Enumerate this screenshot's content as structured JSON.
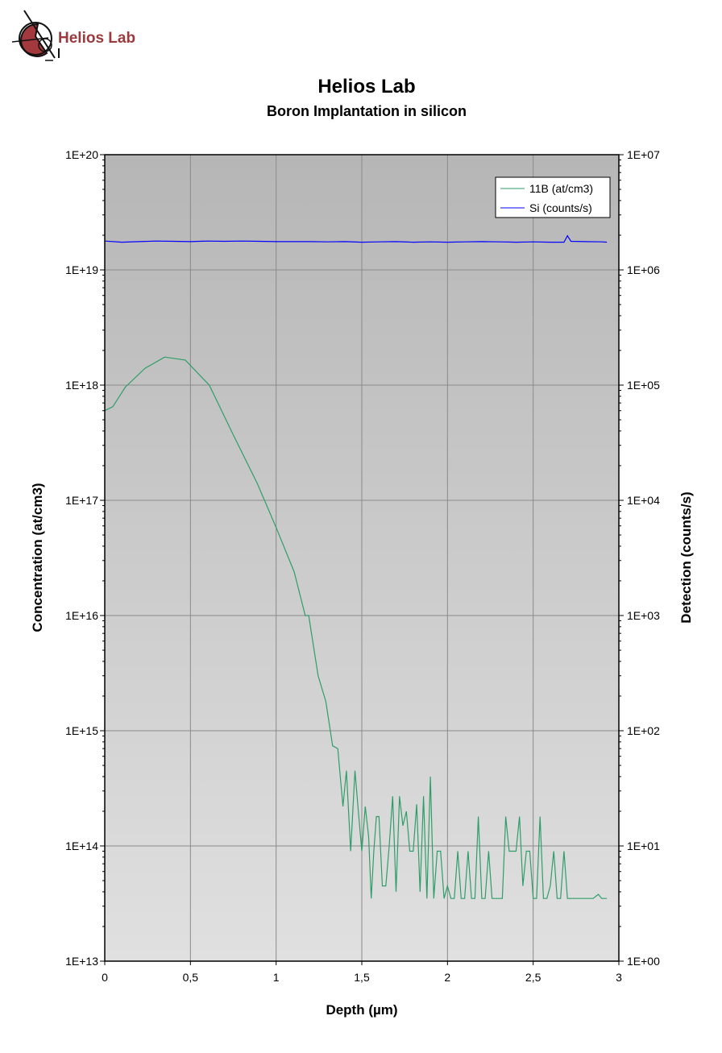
{
  "logo": {
    "text": "Helios Lab",
    "color": "#9b3a3e"
  },
  "chart_data": {
    "type": "line",
    "title": "Helios Lab",
    "subtitle": "Boron Implantation in silicon",
    "xlabel": "Depth (µm)",
    "ylabel": "Concentration (at/cm3)",
    "y2label": "Detection (counts/s)",
    "xlim": [
      0,
      3
    ],
    "ylim": [
      10000000000000.0,
      1e+20
    ],
    "y2lim": [
      1,
      10000000.0
    ],
    "yscale": "log",
    "y2scale": "log",
    "grid": true,
    "legend_position": "top-right",
    "xticks": [
      "0",
      "0,5",
      "1",
      "1,5",
      "2",
      "2,5",
      "3"
    ],
    "yticks": [
      "1E+13",
      "1E+14",
      "1E+15",
      "1E+16",
      "1E+17",
      "1E+18",
      "1E+19",
      "1E+20"
    ],
    "y2ticks": [
      "1E+00",
      "1E+01",
      "1E+02",
      "1E+03",
      "1E+04",
      "1E+05",
      "1E+06",
      "1E+07"
    ],
    "series": [
      {
        "name": "11B (at/cm3)",
        "axis": "left",
        "color": "#2e9e68",
        "x": [
          0,
          0.047,
          0.12,
          0.235,
          0.35,
          0.47,
          0.61,
          0.75,
          0.89,
          1.0,
          1.105,
          1.17,
          1.19,
          1.245,
          1.29,
          1.33,
          1.36,
          1.39,
          1.41,
          1.435,
          1.46,
          1.48,
          1.5,
          1.52,
          1.54,
          1.555,
          1.57,
          1.585,
          1.6,
          1.62,
          1.64,
          1.66,
          1.68,
          1.7,
          1.72,
          1.74,
          1.76,
          1.78,
          1.8,
          1.82,
          1.84,
          1.86,
          1.88,
          1.9,
          1.92,
          1.94,
          1.96,
          1.98,
          2.0,
          2.02,
          2.04,
          2.06,
          2.08,
          2.1,
          2.12,
          2.14,
          2.16,
          2.18,
          2.2,
          2.22,
          2.24,
          2.26,
          2.28,
          2.3,
          2.32,
          2.34,
          2.36,
          2.38,
          2.4,
          2.42,
          2.44,
          2.46,
          2.48,
          2.5,
          2.52,
          2.54,
          2.56,
          2.58,
          2.6,
          2.62,
          2.64,
          2.66,
          2.68,
          2.7,
          2.75,
          2.8,
          2.85,
          2.88,
          2.9,
          2.93
        ],
        "y": [
          6e+17,
          6.5e+17,
          9.6e+17,
          1.4e+18,
          1.75e+18,
          1.65e+18,
          1e+18,
          3.7e+17,
          1.4e+17,
          5.8e+16,
          2.4e+16,
          1e+16,
          1e+16,
          3000000000000000.0,
          1800000000000000.0,
          740000000000000.0,
          700000000000000.0,
          220000000000000.0,
          450000000000000.0,
          90000000000000.0,
          450000000000000.0,
          200000000000000.0,
          90000000000000.0,
          220000000000000.0,
          120000000000000.0,
          35000000000000.0,
          90000000000000.0,
          180000000000000.0,
          180000000000000.0,
          45000000000000.0,
          45000000000000.0,
          100000000000000.0,
          270000000000000.0,
          40000000000000.0,
          270000000000000.0,
          150000000000000.0,
          200000000000000.0,
          90000000000000.0,
          90000000000000.0,
          230000000000000.0,
          40000000000000.0,
          270000000000000.0,
          35000000000000.0,
          400000000000000.0,
          35000000000000.0,
          90000000000000.0,
          90000000000000.0,
          35000000000000.0,
          45000000000000.0,
          35000000000000.0,
          35000000000000.0,
          90000000000000.0,
          35000000000000.0,
          35000000000000.0,
          90000000000000.0,
          35000000000000.0,
          35000000000000.0,
          180000000000000.0,
          35000000000000.0,
          35000000000000.0,
          90000000000000.0,
          35000000000000.0,
          35000000000000.0,
          35000000000000.0,
          35000000000000.0,
          180000000000000.0,
          90000000000000.0,
          90000000000000.0,
          90000000000000.0,
          180000000000000.0,
          45000000000000.0,
          90000000000000.0,
          90000000000000.0,
          35000000000000.0,
          35000000000000.0,
          180000000000000.0,
          35000000000000.0,
          35000000000000.0,
          45000000000000.0,
          90000000000000.0,
          35000000000000.0,
          35000000000000.0,
          90000000000000.0,
          35000000000000.0,
          35000000000000.0,
          35000000000000.0,
          35000000000000.0,
          38000000000000.0,
          35000000000000.0,
          35000000000000.0
        ]
      },
      {
        "name": "Si (counts/s)",
        "axis": "right",
        "color": "#0000ff",
        "x": [
          0,
          0.1,
          0.2,
          0.3,
          0.4,
          0.5,
          0.6,
          0.7,
          0.8,
          0.9,
          1.0,
          1.1,
          1.2,
          1.3,
          1.4,
          1.5,
          1.6,
          1.7,
          1.8,
          1.9,
          2.0,
          2.1,
          2.2,
          2.3,
          2.4,
          2.5,
          2.6,
          2.68,
          2.7,
          2.72,
          2.8,
          2.9,
          2.93
        ],
        "y": [
          1780000.0,
          1740000.0,
          1760000.0,
          1780000.0,
          1770000.0,
          1760000.0,
          1780000.0,
          1770000.0,
          1780000.0,
          1770000.0,
          1760000.0,
          1760000.0,
          1760000.0,
          1750000.0,
          1760000.0,
          1740000.0,
          1750000.0,
          1760000.0,
          1740000.0,
          1750000.0,
          1740000.0,
          1750000.0,
          1760000.0,
          1750000.0,
          1740000.0,
          1750000.0,
          1740000.0,
          1740000.0,
          1980000.0,
          1770000.0,
          1760000.0,
          1750000.0,
          1740000.0
        ]
      }
    ]
  }
}
